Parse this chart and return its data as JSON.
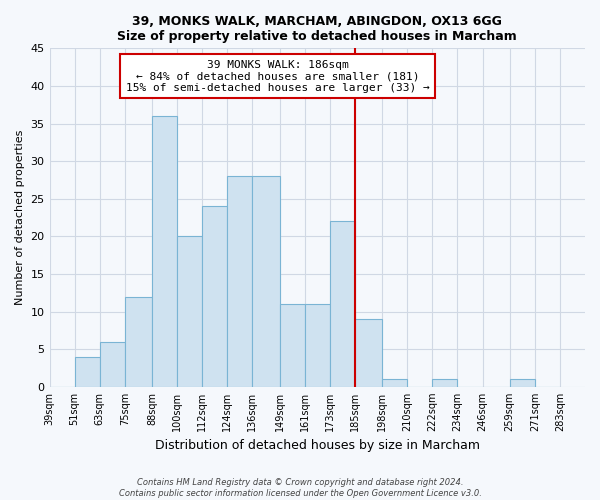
{
  "title": "39, MONKS WALK, MARCHAM, ABINGDON, OX13 6GG",
  "subtitle": "Size of property relative to detached houses in Marcham",
  "xlabel": "Distribution of detached houses by size in Marcham",
  "ylabel": "Number of detached properties",
  "bin_labels": [
    "39sqm",
    "51sqm",
    "63sqm",
    "75sqm",
    "88sqm",
    "100sqm",
    "112sqm",
    "124sqm",
    "136sqm",
    "149sqm",
    "161sqm",
    "173sqm",
    "185sqm",
    "198sqm",
    "210sqm",
    "222sqm",
    "234sqm",
    "246sqm",
    "259sqm",
    "271sqm",
    "283sqm"
  ],
  "bin_edges": [
    39,
    51,
    63,
    75,
    88,
    100,
    112,
    124,
    136,
    149,
    161,
    173,
    185,
    198,
    210,
    222,
    234,
    246,
    259,
    271,
    283
  ],
  "counts": [
    0,
    4,
    6,
    12,
    36,
    20,
    24,
    28,
    28,
    11,
    11,
    22,
    9,
    1,
    0,
    1,
    0,
    0,
    1,
    0
  ],
  "bar_color": "#cfe2f0",
  "bar_edge_color": "#7ab4d4",
  "vline_x": 185,
  "vline_color": "#cc0000",
  "annotation_title": "39 MONKS WALK: 186sqm",
  "annotation_line1": "← 84% of detached houses are smaller (181)",
  "annotation_line2": "15% of semi-detached houses are larger (33) →",
  "annotation_box_color": "#ffffff",
  "annotation_box_edge": "#cc0000",
  "footer1": "Contains HM Land Registry data © Crown copyright and database right 2024.",
  "footer2": "Contains public sector information licensed under the Open Government Licence v3.0.",
  "ylim": [
    0,
    45
  ],
  "yticks": [
    0,
    5,
    10,
    15,
    20,
    25,
    30,
    35,
    40,
    45
  ],
  "bg_color": "#f5f8fc",
  "grid_color": "#d0d8e4"
}
